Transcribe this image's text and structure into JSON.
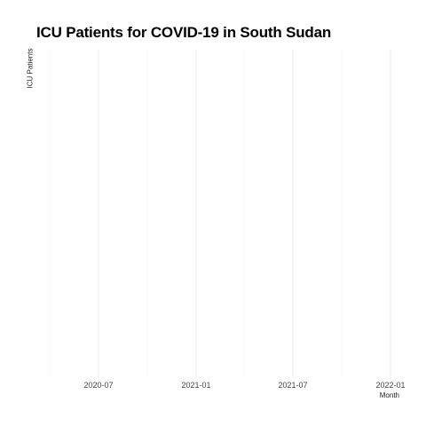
{
  "chart_data": {
    "type": "line",
    "title": "ICU Patients for COVID-19 in South Sudan",
    "xlabel": "Month",
    "ylabel": "ICU Patients",
    "x_tick_labels": [
      "2020-07",
      "2021-01",
      "2021-07",
      "2022-01"
    ],
    "series": [],
    "grid": true
  },
  "colors": {
    "major_grid": "#ebebeb",
    "minor_grid": "#f5f5f5"
  }
}
